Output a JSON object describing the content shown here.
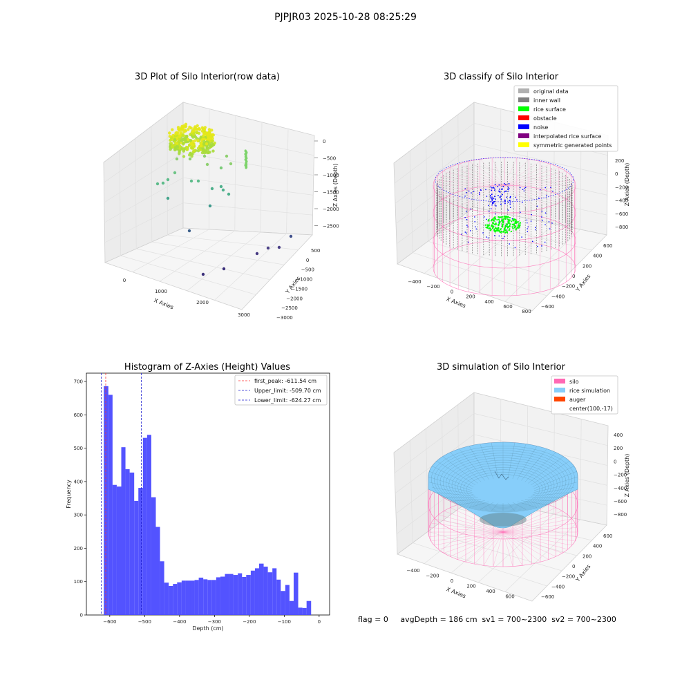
{
  "suptitle": "PJPJR03 2025-10-28 08:25:29",
  "footer": "flag = 0     avgDepth = 186 cm  sv1 = 700~2300  sv2 = 700~2300",
  "colors": {
    "bar": "#4a4aff",
    "first_peak": "#ff3030",
    "limits": "#1f1fd0",
    "silo": "#ff69b4",
    "rice": "#87cefa",
    "auger": "#ff4500",
    "rice_surface": "#00ff00",
    "noise": "#0000ff",
    "inner_wall": "#808080"
  },
  "chart_data": [
    {
      "type": "scatter",
      "title": "3D Plot of Silo Interior(row data)",
      "xlabel": "X Axies",
      "ylabel": "Y Axies",
      "zlabel": "Z Axies (Depth)",
      "x_ticks": [
        "0",
        "1000",
        "2000",
        "3000"
      ],
      "y_ticks": [
        "500",
        "0",
        "−500",
        "−1000",
        "−1500",
        "−2000",
        "−2500",
        "−3000"
      ],
      "z_ticks": [
        "0",
        "−500",
        "−1000",
        "−1500",
        "−2000",
        "−2500"
      ]
    },
    {
      "type": "scatter",
      "title": "3D classify of Silo Interior",
      "xlabel": "X Axies",
      "ylabel": "Y Axies",
      "zlabel": "Z Axies (Depth)",
      "x_ticks": [
        "−400",
        "−200",
        "0",
        "200",
        "400",
        "600",
        "800"
      ],
      "y_ticks": [
        "600",
        "400",
        "200",
        "0",
        "−200",
        "−400",
        "−600"
      ],
      "z_ticks": [
        "200",
        "0",
        "−200",
        "−400",
        "−600",
        "−800"
      ],
      "legend": [
        {
          "label": "original data",
          "color": "#b0b0b0"
        },
        {
          "label": "inner wall",
          "color": "#808080"
        },
        {
          "label": "rice surface",
          "color": "#00ff00"
        },
        {
          "label": "obstacle",
          "color": "#ff0000"
        },
        {
          "label": "noise",
          "color": "#0000ff"
        },
        {
          "label": "interpolated rice surface",
          "color": "#800080"
        },
        {
          "label": "symmetric generated points",
          "color": "#ffff00"
        }
      ]
    },
    {
      "type": "bar",
      "title": "Histogram of Z-Axies (Height) Values",
      "xlabel": "Depth (cm)",
      "ylabel": "Frequency",
      "xlim": [
        -667,
        30
      ],
      "ylim": [
        0,
        725
      ],
      "x_ticks": [
        -600,
        -500,
        -400,
        -300,
        -200,
        -100,
        0
      ],
      "y_ticks": [
        0,
        100,
        200,
        300,
        400,
        500,
        600,
        700
      ],
      "bins": [
        {
          "x0": -617,
          "x1": -604,
          "value": 686
        },
        {
          "x0": -604,
          "x1": -592,
          "value": 660
        },
        {
          "x0": -592,
          "x1": -580,
          "value": 390
        },
        {
          "x0": -580,
          "x1": -567,
          "value": 385
        },
        {
          "x0": -567,
          "x1": -555,
          "value": 503
        },
        {
          "x0": -555,
          "x1": -543,
          "value": 437
        },
        {
          "x0": -543,
          "x1": -530,
          "value": 427
        },
        {
          "x0": -530,
          "x1": -518,
          "value": 342
        },
        {
          "x0": -518,
          "x1": -505,
          "value": 381
        },
        {
          "x0": -505,
          "x1": -493,
          "value": 531
        },
        {
          "x0": -493,
          "x1": -481,
          "value": 540
        },
        {
          "x0": -481,
          "x1": -468,
          "value": 353
        },
        {
          "x0": -468,
          "x1": -456,
          "value": 264
        },
        {
          "x0": -456,
          "x1": -444,
          "value": 161
        },
        {
          "x0": -444,
          "x1": -431,
          "value": 97
        },
        {
          "x0": -431,
          "x1": -419,
          "value": 87
        },
        {
          "x0": -419,
          "x1": -407,
          "value": 93
        },
        {
          "x0": -407,
          "x1": -394,
          "value": 98
        },
        {
          "x0": -394,
          "x1": -382,
          "value": 103
        },
        {
          "x0": -382,
          "x1": -369,
          "value": 103
        },
        {
          "x0": -369,
          "x1": -357,
          "value": 103
        },
        {
          "x0": -357,
          "x1": -345,
          "value": 105
        },
        {
          "x0": -345,
          "x1": -332,
          "value": 112
        },
        {
          "x0": -332,
          "x1": -320,
          "value": 107
        },
        {
          "x0": -320,
          "x1": -308,
          "value": 105
        },
        {
          "x0": -308,
          "x1": -295,
          "value": 105
        },
        {
          "x0": -295,
          "x1": -283,
          "value": 113
        },
        {
          "x0": -283,
          "x1": -270,
          "value": 115
        },
        {
          "x0": -270,
          "x1": -258,
          "value": 123
        },
        {
          "x0": -258,
          "x1": -246,
          "value": 123
        },
        {
          "x0": -246,
          "x1": -233,
          "value": 120
        },
        {
          "x0": -233,
          "x1": -221,
          "value": 125
        },
        {
          "x0": -221,
          "x1": -209,
          "value": 114
        },
        {
          "x0": -209,
          "x1": -196,
          "value": 120
        },
        {
          "x0": -196,
          "x1": -184,
          "value": 133
        },
        {
          "x0": -184,
          "x1": -172,
          "value": 140
        },
        {
          "x0": -172,
          "x1": -159,
          "value": 154
        },
        {
          "x0": -159,
          "x1": -147,
          "value": 145
        },
        {
          "x0": -147,
          "x1": -134,
          "value": 128
        },
        {
          "x0": -134,
          "x1": -122,
          "value": 140
        },
        {
          "x0": -122,
          "x1": -110,
          "value": 106
        },
        {
          "x0": -110,
          "x1": -97,
          "value": 72
        },
        {
          "x0": -97,
          "x1": -85,
          "value": 90
        },
        {
          "x0": -85,
          "x1": -73,
          "value": 42
        },
        {
          "x0": -73,
          "x1": -60,
          "value": 127
        },
        {
          "x0": -60,
          "x1": -48,
          "value": 22
        },
        {
          "x0": -48,
          "x1": -36,
          "value": 21
        },
        {
          "x0": -36,
          "x1": -23,
          "value": 42
        }
      ],
      "lines": [
        {
          "label": "first_peak: -611.54 cm",
          "x": -611.54,
          "color": "#ff3030"
        },
        {
          "label": "Upper_limit: -509.70 cm",
          "x": -509.7,
          "color": "#1f1fd0"
        },
        {
          "label": "Lower_limit: -624.27 cm",
          "x": -624.27,
          "color": "#1f1fd0"
        }
      ],
      "legend_position": "top-right"
    },
    {
      "type": "area",
      "title": "3D simulation of Silo Interior",
      "xlabel": "X Axies",
      "ylabel": "Y Axies",
      "zlabel": "Z Axies (Depth)",
      "x_ticks": [
        "−400",
        "−200",
        "0",
        "200",
        "400",
        "600"
      ],
      "y_ticks": [
        "600",
        "400",
        "200",
        "0",
        "−200",
        "−400",
        "−600"
      ],
      "z_ticks": [
        "400",
        "200",
        "0",
        "−200",
        "−400",
        "−600",
        "−800"
      ],
      "legend": [
        {
          "label": "silo",
          "color": "#ff69b4"
        },
        {
          "label": "rice simulation",
          "color": "#87cefa"
        },
        {
          "label": "auger",
          "color": "#ff4500"
        },
        {
          "label": "center(100,-17)",
          "color": ""
        }
      ]
    }
  ]
}
